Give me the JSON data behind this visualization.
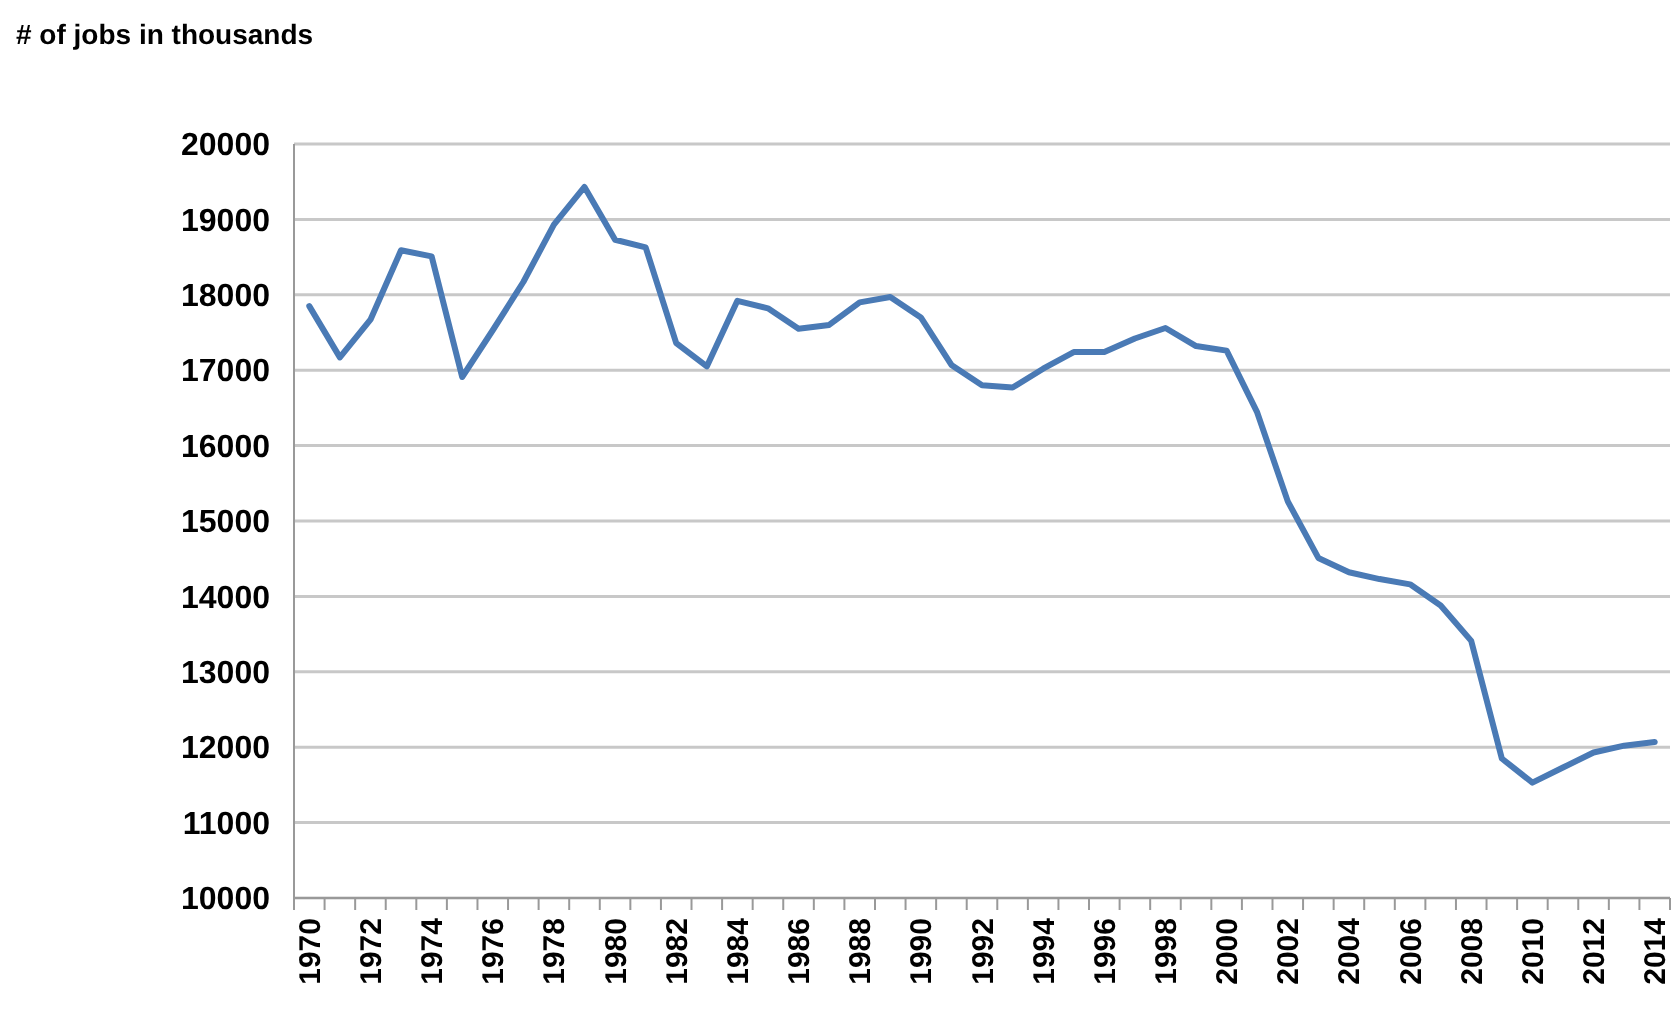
{
  "chart_data": {
    "type": "line",
    "title": "# of jobs in thousands",
    "categories": [
      "1970",
      null,
      "1972",
      null,
      "1974",
      null,
      "1976",
      null,
      "1978",
      null,
      "1980",
      null,
      "1982",
      null,
      "1984",
      null,
      "1986",
      null,
      "1988",
      null,
      "1990",
      null,
      "1992",
      null,
      "1994",
      null,
      "1996",
      null,
      "1998",
      null,
      "2000",
      null,
      "2002",
      null,
      "2004",
      null,
      "2006",
      null,
      "2008",
      null,
      "2010",
      null,
      "2012",
      null,
      "2014"
    ],
    "series": [
      {
        "color": "#4a7ab5",
        "values": [
          17850,
          17170,
          17670,
          18590,
          18510,
          16910,
          17530,
          18170,
          18930,
          19430,
          18730,
          18630,
          17360,
          17050,
          17920,
          17820,
          17550,
          17600,
          17900,
          17970,
          17700,
          17070,
          16800,
          16770,
          17020,
          17240,
          17240,
          17420,
          17560,
          17320,
          17260,
          16440,
          15260,
          14510,
          14320,
          14230,
          14160,
          13880,
          13410,
          11850,
          11530,
          11730,
          11930,
          12020,
          12070
        ]
      }
    ],
    "ylim": [
      10000,
      20000
    ],
    "yticks": [
      10000,
      11000,
      12000,
      13000,
      14000,
      15000,
      16000,
      17000,
      18000,
      19000,
      20000
    ],
    "grid": "y",
    "marker": "none",
    "line_style": "solid"
  }
}
